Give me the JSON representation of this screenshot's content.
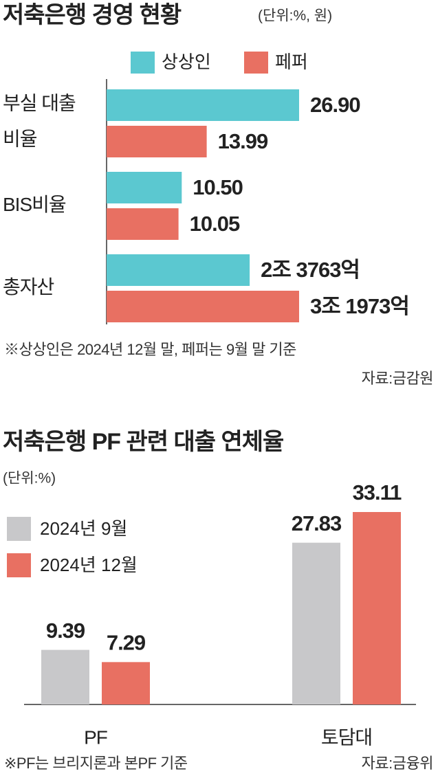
{
  "chart_data": [
    {
      "type": "barh",
      "title": "저축은행 경영 현황",
      "unit": "(단위:%, 원)",
      "categories": [
        "부실 대출 비율",
        "BIS비율",
        "총자산"
      ],
      "series": [
        {
          "name": "상상인",
          "color": "#5bc8d0",
          "values": [
            26.9,
            10.5,
            2376300000000
          ],
          "value_labels": [
            "26.90",
            "10.50",
            "2조 3763억"
          ]
        },
        {
          "name": "페퍼",
          "color": "#e87062",
          "values": [
            13.99,
            10.05,
            3197300000000
          ],
          "value_labels": [
            "13.99",
            "10.05",
            "3조 1973억"
          ]
        }
      ],
      "note": "※상상인은 2024년 12월 말, 페퍼는 9월 말 기준",
      "source": "자료:금감원"
    },
    {
      "type": "bar",
      "title": "저축은행 PF 관련 대출 연체율",
      "unit": "(단위:%)",
      "categories": [
        "PF",
        "토담대"
      ],
      "series": [
        {
          "name": "2024년 9월",
          "color": "#c8c8ca",
          "values": [
            9.39,
            27.83
          ]
        },
        {
          "name": "2024년 12월",
          "color": "#e87062",
          "values": [
            7.29,
            33.11
          ]
        }
      ],
      "note": "※PF는 브리지론과 본PF 기준",
      "source": "자료:금융위"
    }
  ]
}
